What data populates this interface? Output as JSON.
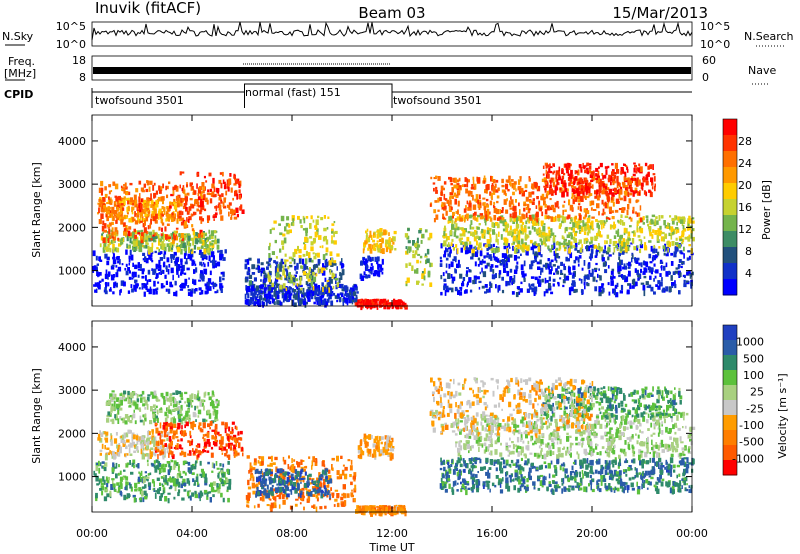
{
  "header": {
    "station": "Inuvik (fitACF)",
    "beam": "Beam 03",
    "date": "15/Mar/2013"
  },
  "strip_panels": {
    "nsky_label": "N.Sky",
    "nsky_ticks": [
      "10^5",
      "10^0"
    ],
    "nsearch_label": "N.Search",
    "nsearch_ticks": [
      "10^5",
      "10^0"
    ],
    "freq_label": "Freq.",
    "freq_unit": "[MHz]",
    "freq_ticks": [
      "18",
      "8"
    ],
    "nave_label": "Nave",
    "nave_ticks": [
      "60",
      "0"
    ],
    "cpid_label": "CPID",
    "cpid_segments": [
      {
        "label": "twofsound 3501",
        "start_hour": 0,
        "end_hour": 6.1
      },
      {
        "label": "normal (fast) 151",
        "start_hour": 6.1,
        "end_hour": 12.0
      },
      {
        "label": "twofsound 3501",
        "start_hour": 12.0,
        "end_hour": 24
      }
    ]
  },
  "chart_data": [
    {
      "type": "heatmap",
      "name": "power",
      "ylabel": "Slant Range [km]",
      "yticks": [
        1000,
        2000,
        3000,
        4000
      ],
      "ylim": [
        180,
        4600
      ],
      "colorbar_label": "Power [dB]",
      "colorbar_ticks": [
        "28",
        "24",
        "20",
        "16",
        "12",
        "8",
        "4"
      ],
      "colors": [
        "#ff0000",
        "#ff3300",
        "#ff6f00",
        "#ff9900",
        "#ffcc00",
        "#c6d230",
        "#74b44c",
        "#3d8c64",
        "#21507c",
        "#1030c8",
        "#0000ff"
      ],
      "regions": [
        {
          "x": [
            0,
            5.3
          ],
          "y": [
            500,
            1500
          ],
          "level": 0.96
        },
        {
          "x": [
            0.3,
            5.0
          ],
          "y": [
            1500,
            1950
          ],
          "level": 0.55
        },
        {
          "x": [
            0.2,
            3.5
          ],
          "y": [
            2200,
            2700
          ],
          "level": 0.3
        },
        {
          "x": [
            0.2,
            4.5
          ],
          "y": [
            1700,
            3100
          ],
          "level": 0.2
        },
        {
          "x": [
            3.5,
            6.0
          ],
          "y": [
            2200,
            3300
          ],
          "level": 0.15
        },
        {
          "x": [
            6.1,
            10.0
          ],
          "y": [
            400,
            1300
          ],
          "level": 0.85
        },
        {
          "x": [
            6.1,
            10.6
          ],
          "y": [
            250,
            700
          ],
          "level": 0.9
        },
        {
          "x": [
            7.0,
            9.8
          ],
          "y": [
            600,
            2300
          ],
          "level": 0.5
        },
        {
          "x": [
            10.8,
            12.1
          ],
          "y": [
            1500,
            2000
          ],
          "level": 0.4
        },
        {
          "x": [
            10.7,
            11.6
          ],
          "y": [
            850,
            1350
          ],
          "level": 0.95
        },
        {
          "x": [
            10.5,
            12.5
          ],
          "y": [
            200,
            350
          ],
          "level": 0.05
        },
        {
          "x": [
            13.9,
            24.0
          ],
          "y": [
            500,
            1650
          ],
          "level": 0.9
        },
        {
          "x": [
            14.0,
            24.0
          ],
          "y": [
            1500,
            2300
          ],
          "level": 0.5
        },
        {
          "x": [
            13.5,
            22.0
          ],
          "y": [
            2200,
            3200
          ],
          "level": 0.22
        },
        {
          "x": [
            18.0,
            22.5
          ],
          "y": [
            2800,
            3500
          ],
          "level": 0.1
        },
        {
          "x": [
            12.5,
            13.5
          ],
          "y": [
            700,
            2000
          ],
          "level": 0.55
        }
      ]
    },
    {
      "type": "heatmap",
      "name": "velocity",
      "ylabel": "Slant Range [km]",
      "yticks": [
        1000,
        2000,
        3000,
        4000
      ],
      "ylim": [
        180,
        4600
      ],
      "colorbar_label": "Velocity [m s⁻¹]",
      "colorbar_ticks": [
        "1000",
        "500",
        "100",
        "25",
        "-25",
        "-100",
        "-500",
        "-1000"
      ],
      "colors": [
        "#2040c0",
        "#2a5ca8",
        "#2e8a6a",
        "#5cc13c",
        "#a8d080",
        "#c8c8c8",
        "#ff9c00",
        "#ff7e00",
        "#ff5a00",
        "#ff0000"
      ],
      "regions": [
        {
          "x": [
            0,
            5.5
          ],
          "y": [
            500,
            1400
          ],
          "level": 0.3
        },
        {
          "x": [
            0.2,
            3.0
          ],
          "y": [
            1500,
            2100
          ],
          "level": 0.55
        },
        {
          "x": [
            0.5,
            5.0
          ],
          "y": [
            2300,
            3000
          ],
          "level": 0.4
        },
        {
          "x": [
            2.5,
            6.0
          ],
          "y": [
            1500,
            2300
          ],
          "level": 0.85
        },
        {
          "x": [
            6.1,
            10.5
          ],
          "y": [
            300,
            1500
          ],
          "level": 0.78
        },
        {
          "x": [
            6.5,
            9.5
          ],
          "y": [
            600,
            1200
          ],
          "level": 0.15
        },
        {
          "x": [
            10.6,
            12.0
          ],
          "y": [
            1500,
            2000
          ],
          "level": 0.65
        },
        {
          "x": [
            10.5,
            12.5
          ],
          "y": [
            200,
            350
          ],
          "level": 0.72
        },
        {
          "x": [
            13.9,
            24.0
          ],
          "y": [
            700,
            1450
          ],
          "level": 0.22
        },
        {
          "x": [
            14.5,
            24.0
          ],
          "y": [
            1500,
            2500
          ],
          "level": 0.45
        },
        {
          "x": [
            18.0,
            23.5
          ],
          "y": [
            2400,
            3100
          ],
          "level": 0.3
        },
        {
          "x": [
            13.5,
            20.0
          ],
          "y": [
            2000,
            3300
          ],
          "level": 0.6
        }
      ]
    }
  ],
  "x_axis": {
    "ticks": [
      "00:00",
      "04:00",
      "08:00",
      "12:00",
      "16:00",
      "20:00",
      "00:00"
    ],
    "label": "Time UT"
  }
}
